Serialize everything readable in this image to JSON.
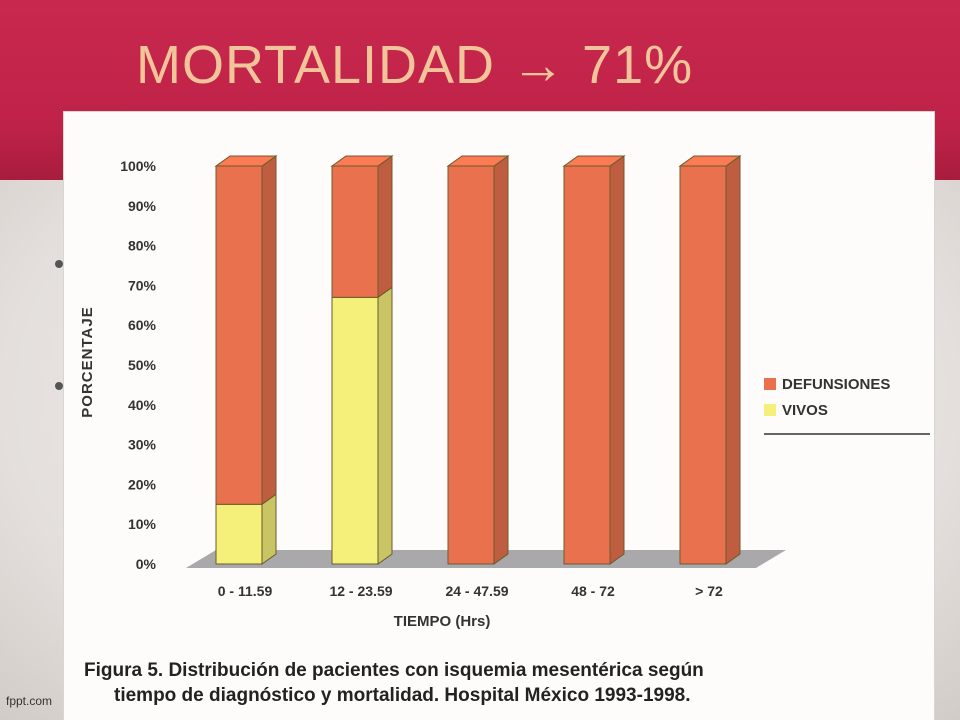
{
  "slide": {
    "title": "MORTALIDAD  → 71%",
    "footer": "fppt.com"
  },
  "figure": {
    "caption_line1": "Figura 5.  Distribución de pacientes con isquemia mesentérica según",
    "caption_line2": "tiempo de diagnóstico y mortalidad.  Hospital México 1993-1998."
  },
  "chart_data": {
    "type": "bar",
    "stacked": true,
    "three_d": true,
    "xlabel": "TIEMPO (Hrs)",
    "ylabel": "PORCENTAJE",
    "ylim": [
      0,
      100
    ],
    "yticks": [
      "0%",
      "10%",
      "20%",
      "30%",
      "40%",
      "50%",
      "60%",
      "70%",
      "80%",
      "90%",
      "100%"
    ],
    "categories": [
      "0 - 11.59",
      "12 - 23.59",
      "24 - 47.59",
      "48 - 72",
      "> 72"
    ],
    "series": [
      {
        "name": "VIVOS",
        "values": [
          15,
          67,
          0,
          0,
          0
        ],
        "color": "#f5f07a"
      },
      {
        "name": "DEFUNSIONES",
        "values": [
          85,
          33,
          100,
          100,
          100
        ],
        "color": "#e9714e"
      }
    ],
    "legend": "right",
    "legend_entries": [
      "DEFUNSIONES",
      "VIVOS"
    ],
    "legend_colors": [
      "#e9714e",
      "#f5f07a"
    ],
    "grid": false
  }
}
